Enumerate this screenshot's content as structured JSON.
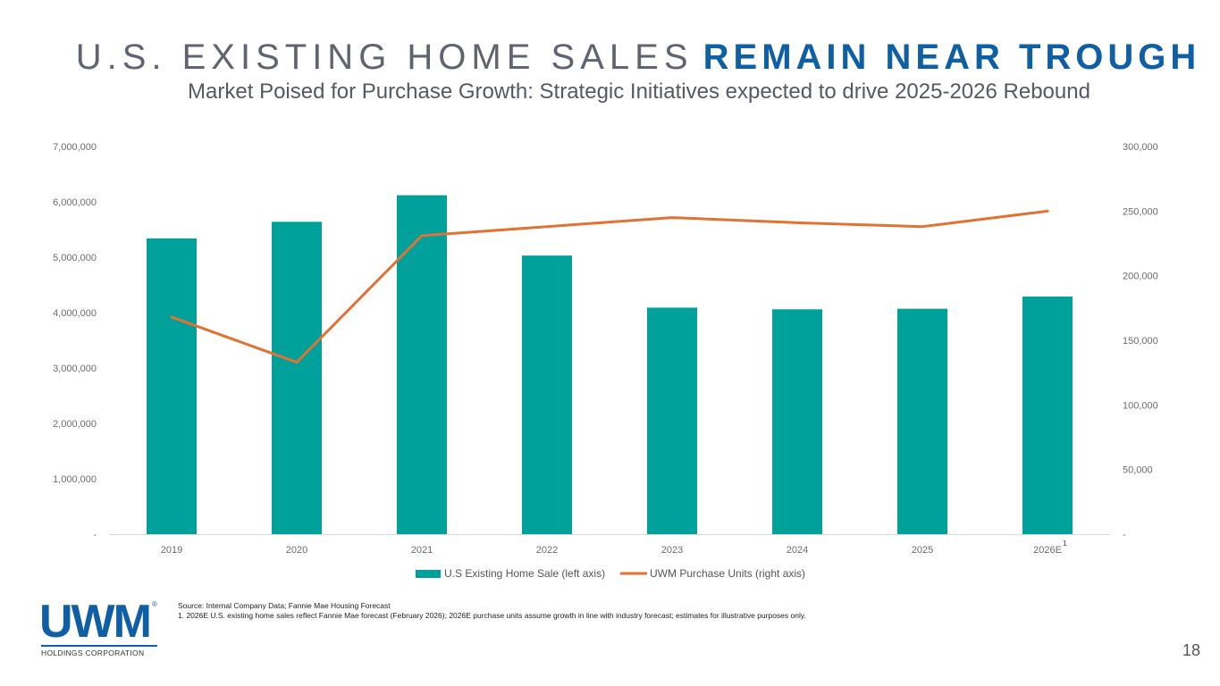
{
  "title": {
    "light": "U.S. EXISTING HOME SALES",
    "bold": "REMAIN NEAR TROUGH"
  },
  "subtitle": "Market Poised for Purchase Growth: Strategic Initiatives expected to drive 2025-2026 Rebound",
  "chart_data": {
    "type": "bar",
    "categories": [
      "2019",
      "2020",
      "2021",
      "2022",
      "2023",
      "2024",
      "2025",
      "2026E"
    ],
    "category_footnote": {
      "category": "2026E",
      "marker": "1"
    },
    "series": [
      {
        "name": "U.S Existing Home Sale (left axis)",
        "type": "bar",
        "axis": "left",
        "color": "#00a19a",
        "values": [
          5340000,
          5640000,
          6120000,
          5030000,
          4090000,
          4060000,
          4070000,
          4290000
        ]
      },
      {
        "name": "UWM Purchase Units (right axis)",
        "type": "line",
        "axis": "right",
        "color": "#e07233",
        "values": [
          168000,
          133000,
          231000,
          238000,
          245000,
          241000,
          238000,
          250000
        ]
      }
    ],
    "left_axis": {
      "min": 0,
      "max": 7000000,
      "ticks": [
        0,
        1000000,
        2000000,
        3000000,
        4000000,
        5000000,
        6000000,
        7000000
      ],
      "tick_labels": [
        "-",
        "1,000,000",
        "2,000,000",
        "3,000,000",
        "4,000,000",
        "5,000,000",
        "6,000,000",
        "7,000,000"
      ]
    },
    "right_axis": {
      "min": 0,
      "max": 300000,
      "ticks": [
        0,
        50000,
        100000,
        150000,
        200000,
        250000,
        300000
      ],
      "tick_labels": [
        "-",
        "50,000",
        "100,000",
        "150,000",
        "200,000",
        "250,000",
        "300,000"
      ]
    },
    "legend_position": "bottom",
    "grid": false
  },
  "logo": {
    "wordmark": "UWM",
    "registered": "®",
    "sub": "HOLDINGS CORPORATION"
  },
  "source": {
    "line1": "Source: Internal Company Data; Fannie Mae Housing Forecast",
    "line2": "1. 2026E U.S. existing home sales reflect Fannie Mae forecast (February 2026); 2026E purchase units assume growth in line with industry forecast; estimates for illustrative purposes only."
  },
  "page_number": "18"
}
